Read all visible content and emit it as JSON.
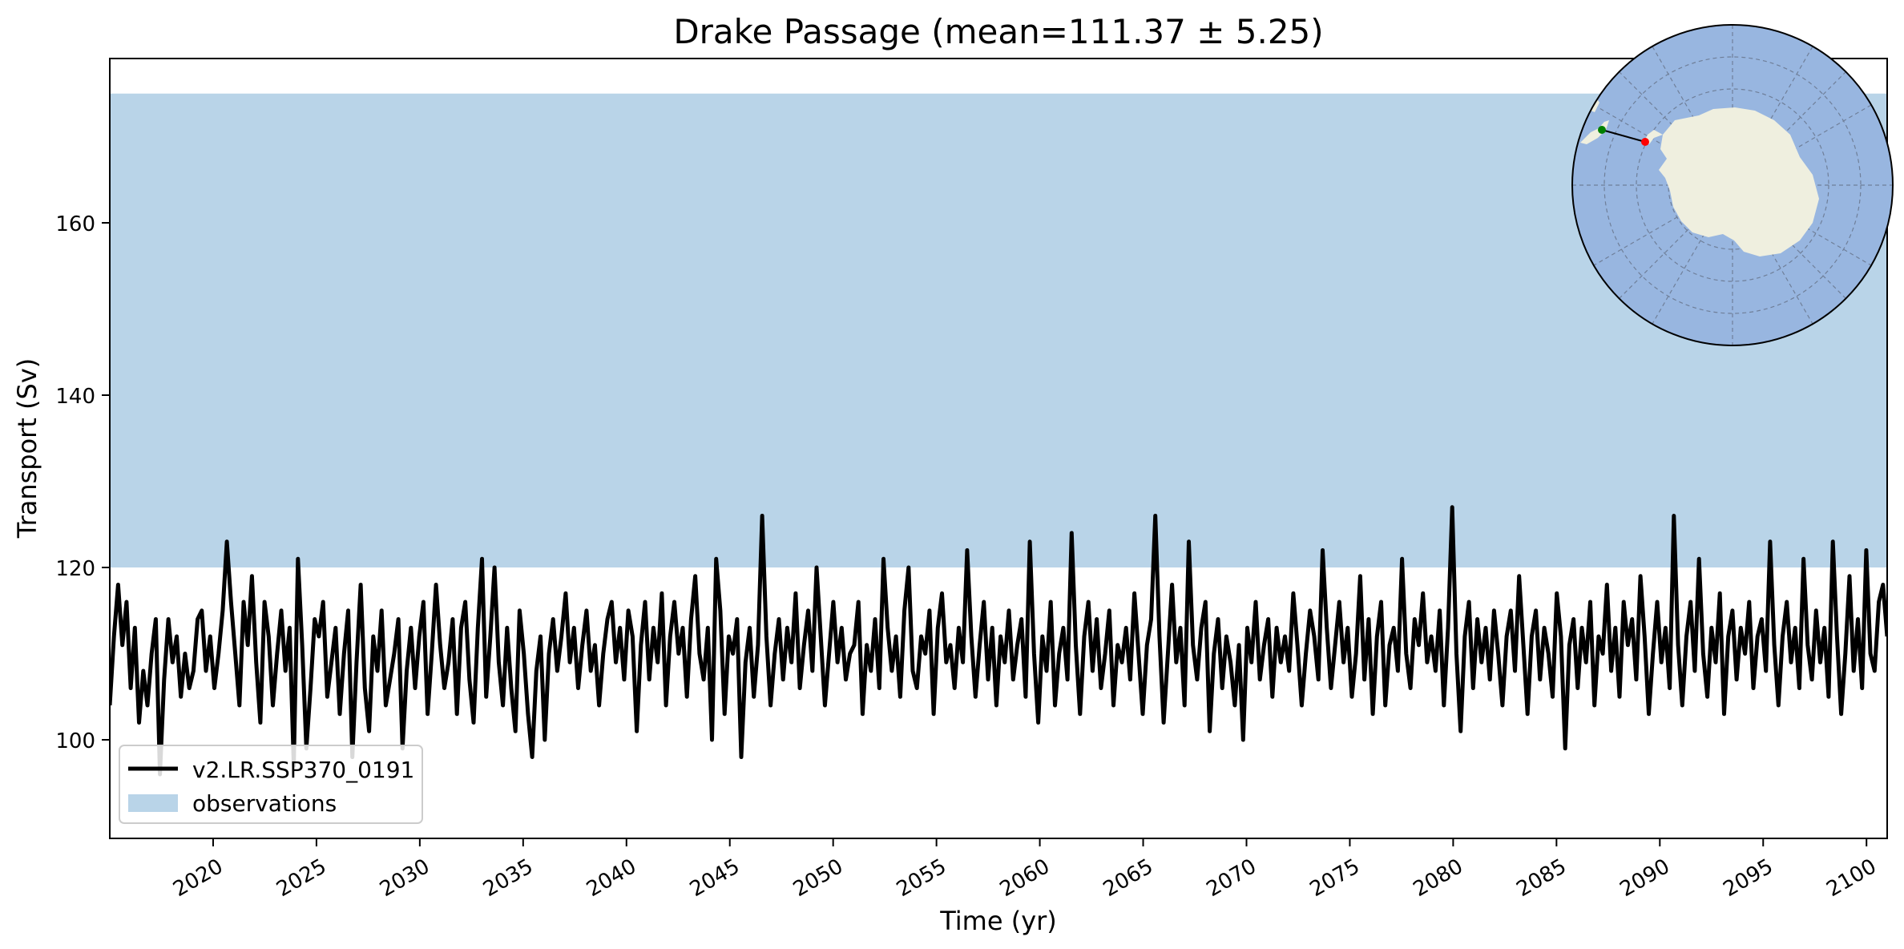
{
  "chart_data": {
    "type": "line",
    "title": "Drake Passage (mean=111.37 ± 5.25)",
    "xlabel": "Time (yr)",
    "ylabel": "Transport (Sv)",
    "xlim": [
      2015,
      2101
    ],
    "ylim": [
      89,
      119
    ],
    "yticks": [
      100,
      120,
      140,
      160
    ],
    "xticks": [
      2020,
      2025,
      2030,
      2035,
      2040,
      2045,
      2050,
      2055,
      2060,
      2065,
      2070,
      2075,
      2080,
      2085,
      2090,
      2095,
      2100
    ],
    "grid": false,
    "legend": {
      "placement": "lower-left"
    },
    "observations": {
      "name": "observations",
      "min": 120,
      "max": 175,
      "color": "#b9d4e8"
    },
    "series": [
      {
        "name": "v2.LR.SSP370_0191",
        "color": "#000000",
        "x_start": 2015,
        "x_end": 2101,
        "values": [
          104,
          112,
          118,
          111,
          116,
          106,
          113,
          102,
          108,
          104,
          110,
          114,
          96,
          107,
          114,
          109,
          112,
          105,
          110,
          106,
          108,
          114,
          115,
          108,
          112,
          106,
          110,
          115,
          123,
          116,
          110,
          104,
          116,
          111,
          119,
          109,
          102,
          116,
          112,
          104,
          110,
          115,
          108,
          113,
          97,
          121,
          111,
          99,
          106,
          114,
          112,
          116,
          105,
          109,
          113,
          103,
          110,
          115,
          98,
          109,
          118,
          106,
          101,
          112,
          108,
          115,
          104,
          107,
          110,
          114,
          99,
          108,
          113,
          106,
          112,
          116,
          103,
          110,
          118,
          111,
          106,
          109,
          114,
          103,
          113,
          116,
          107,
          102,
          113,
          121,
          105,
          112,
          120,
          109,
          104,
          113,
          106,
          101,
          115,
          110,
          103,
          98,
          108,
          112,
          100,
          110,
          114,
          108,
          112,
          117,
          109,
          113,
          106,
          111,
          115,
          108,
          111,
          104,
          110,
          114,
          116,
          109,
          113,
          107,
          115,
          112,
          101,
          111,
          116,
          107,
          113,
          109,
          117,
          104,
          112,
          116,
          110,
          113,
          105,
          114,
          119,
          110,
          107,
          113,
          100,
          121,
          115,
          103,
          112,
          110,
          114,
          98,
          109,
          113,
          105,
          111,
          126,
          112,
          104,
          110,
          114,
          107,
          113,
          109,
          117,
          106,
          111,
          115,
          108,
          120,
          112,
          104,
          110,
          116,
          109,
          113,
          107,
          110,
          111,
          116,
          103,
          111,
          108,
          114,
          106,
          121,
          113,
          108,
          112,
          105,
          115,
          120,
          108,
          106,
          112,
          110,
          115,
          103,
          113,
          117,
          109,
          111,
          106,
          113,
          109,
          122,
          112,
          105,
          111,
          116,
          107,
          113,
          104,
          112,
          109,
          115,
          107,
          111,
          114,
          105,
          123,
          110,
          102,
          112,
          108,
          116,
          104,
          110,
          113,
          107,
          124,
          111,
          103,
          112,
          116,
          108,
          114,
          106,
          110,
          115,
          104,
          111,
          109,
          113,
          107,
          117,
          110,
          103,
          111,
          114,
          126,
          112,
          102,
          110,
          118,
          109,
          113,
          104,
          123,
          111,
          107,
          113,
          116,
          101,
          110,
          114,
          106,
          112,
          109,
          104,
          111,
          100,
          113,
          109,
          116,
          107,
          111,
          114,
          105,
          113,
          109,
          112,
          108,
          117,
          111,
          104,
          110,
          115,
          112,
          107,
          122,
          113,
          106,
          111,
          116,
          109,
          113,
          105,
          110,
          119,
          107,
          114,
          103,
          112,
          116,
          104,
          111,
          113,
          108,
          121,
          110,
          106,
          114,
          111,
          117,
          109,
          112,
          108,
          115,
          104,
          113,
          127,
          110,
          101,
          112,
          116,
          106,
          114,
          109,
          113,
          107,
          115,
          110,
          104,
          112,
          115,
          108,
          119,
          111,
          103,
          112,
          115,
          107,
          113,
          110,
          105,
          117,
          112,
          99,
          111,
          114,
          106,
          113,
          109,
          116,
          104,
          112,
          110,
          118,
          108,
          113,
          105,
          116,
          111,
          114,
          107,
          119,
          112,
          103,
          110,
          116,
          109,
          113,
          106,
          126,
          111,
          104,
          112,
          116,
          108,
          121,
          110,
          105,
          113,
          109,
          117,
          103,
          112,
          115,
          107,
          113,
          110,
          116,
          106,
          112,
          114,
          108,
          123,
          111,
          104,
          112,
          116,
          109,
          113,
          106,
          121,
          111,
          107,
          115,
          109,
          113,
          105,
          123,
          112,
          103,
          110,
          119,
          108,
          114,
          106,
          122,
          110,
          108,
          116,
          118,
          112
        ]
      }
    ]
  },
  "legend_items": [
    {
      "label": "v2.LR.SSP370_0191",
      "color": "#000000",
      "kind": "line"
    },
    {
      "label": "observations",
      "color": "#b9d4e8",
      "kind": "patch"
    }
  ],
  "inset_map": {
    "ocean_color": "#98b6e0",
    "land_color": "#efefdf",
    "start_point_color": "#008000",
    "end_point_color": "#ff0000"
  }
}
